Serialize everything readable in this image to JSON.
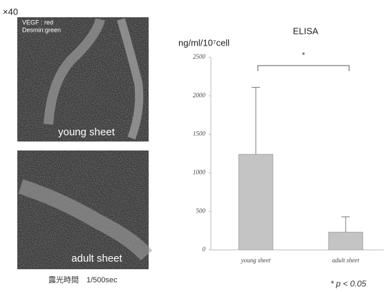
{
  "magnification": "×40",
  "panels": [
    {
      "label": "young sheet",
      "legend": [
        "VEGF : red",
        "Desmin:green"
      ]
    },
    {
      "label": "adult sheet"
    }
  ],
  "exposure": "露光時間　1/500sec",
  "chart_data": {
    "type": "bar",
    "title": "ELISA",
    "y_label": "ng/ml/10⁷cell",
    "categories": [
      "young sheet",
      "adult sheet"
    ],
    "values": [
      1240,
      230
    ],
    "errors": [
      870,
      200
    ],
    "color": "#c4c4c4",
    "ylim": [
      0,
      2500
    ],
    "yticks": [
      0,
      500,
      1000,
      1500,
      2000,
      2500
    ],
    "significance": {
      "between": [
        0,
        1
      ],
      "label": "*"
    },
    "note": "*  p < 0.05"
  }
}
